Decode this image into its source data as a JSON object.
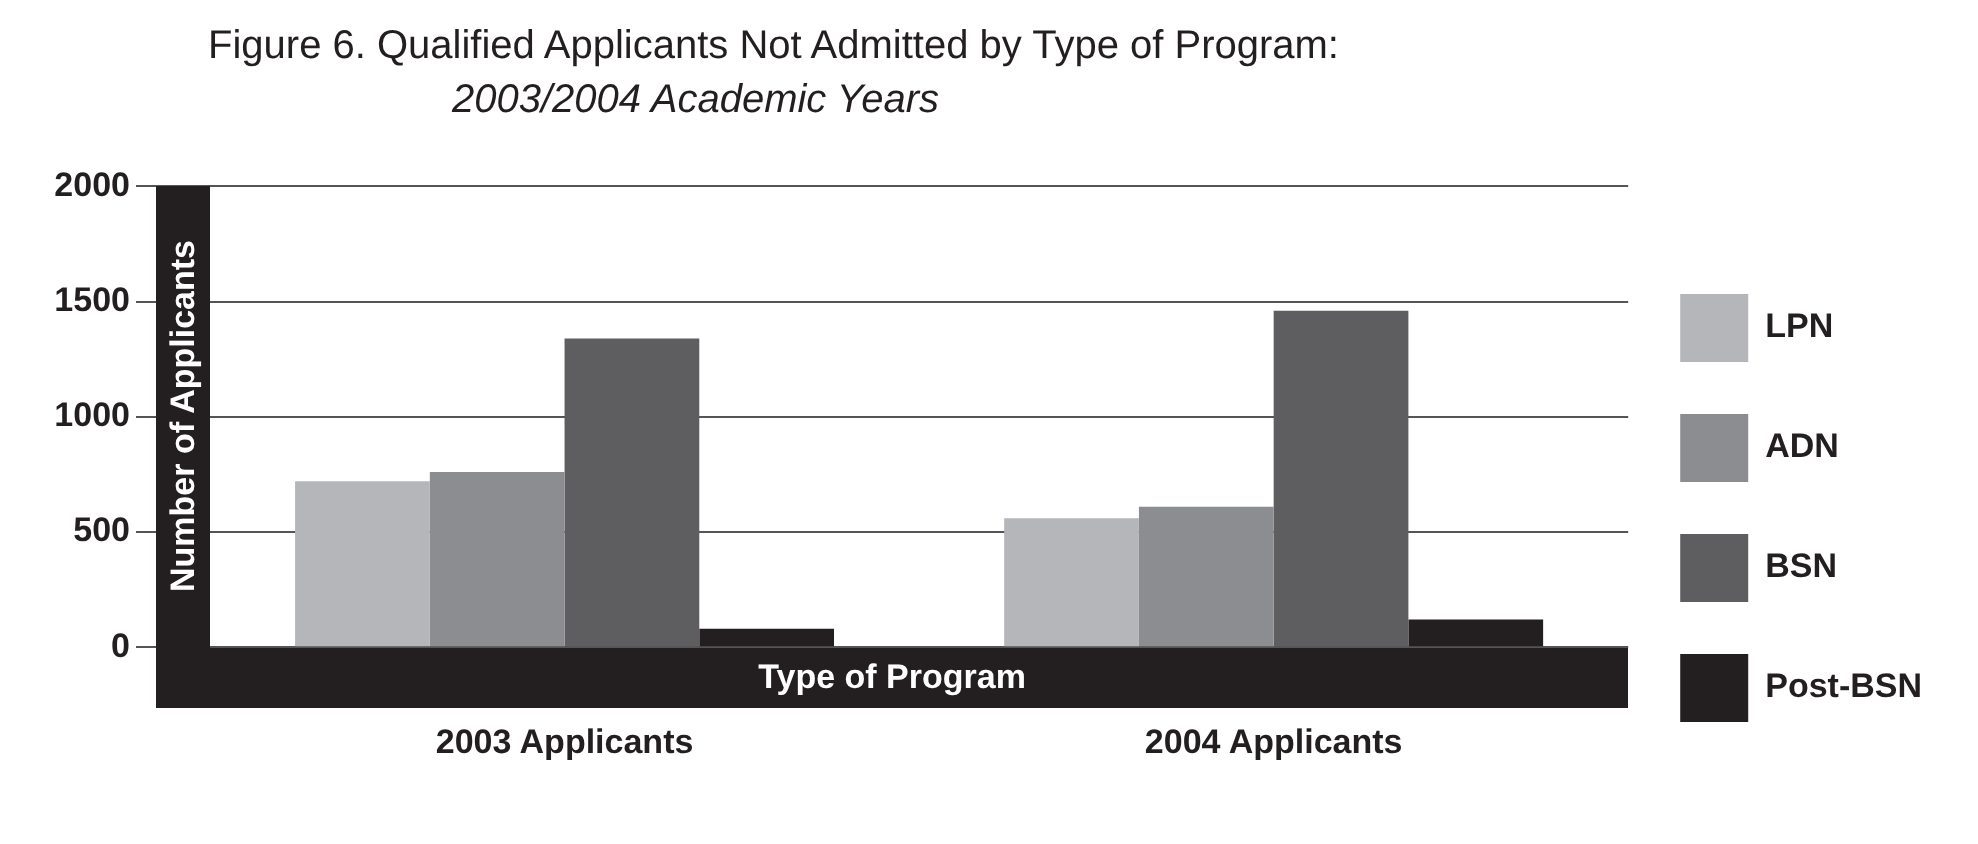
{
  "chart_data": {
    "type": "bar",
    "title": "Figure 6. Qualified Applicants Not Admitted by Type of Program:",
    "subtitle": "2003/2004 Academic Years",
    "xlabel": "Type of Program",
    "ylabel": "Number of Applicants",
    "categories": [
      "2003 Applicants",
      "2004 Applicants"
    ],
    "series": [
      {
        "name": "LPN",
        "color": "#b5b6b9",
        "values": [
          720,
          560
        ]
      },
      {
        "name": "ADN",
        "color": "#8c8d90",
        "values": [
          760,
          610
        ]
      },
      {
        "name": "BSN",
        "color": "#5e5e60",
        "values": [
          1340,
          1460
        ]
      },
      {
        "name": "Post-BSN",
        "color": "#231f20",
        "values": [
          80,
          120
        ]
      }
    ],
    "ylim": [
      0,
      2000
    ],
    "yticks": [
      0,
      500,
      1000,
      1500,
      2000
    ],
    "grid": "y",
    "legend": "right"
  }
}
